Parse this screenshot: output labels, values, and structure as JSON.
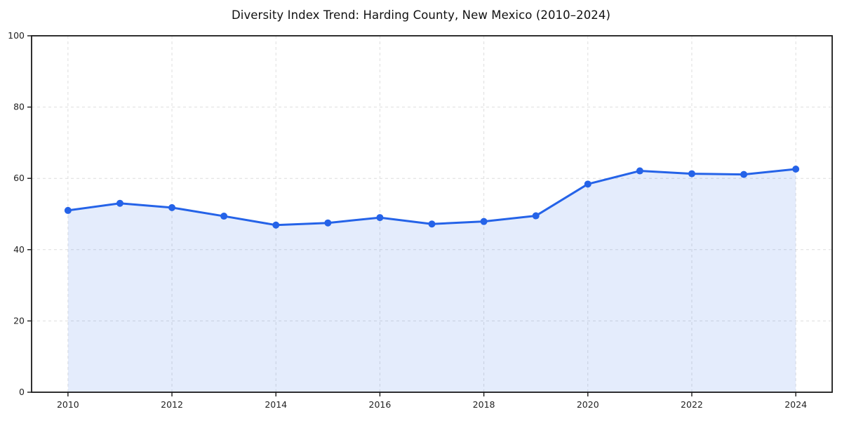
{
  "figure": {
    "title": "Diversity Index Trend: Harding County, New Mexico (2010–2024)"
  },
  "chart_data": {
    "type": "line",
    "title": "Diversity Index Trend: Harding County, New Mexico (2010–2024)",
    "x": [
      2010,
      2011,
      2012,
      2013,
      2014,
      2015,
      2016,
      2017,
      2018,
      2019,
      2020,
      2021,
      2022,
      2023,
      2024
    ],
    "series": [
      {
        "name": "Diversity Index",
        "values": [
          51.0,
          53.0,
          51.8,
          49.4,
          46.9,
          47.5,
          49.0,
          47.2,
          47.9,
          49.5,
          58.4,
          62.1,
          61.3,
          61.1,
          62.6
        ]
      }
    ],
    "xlabel": "",
    "ylabel": "",
    "ylim": [
      0,
      100
    ],
    "yticks": [
      0,
      20,
      40,
      60,
      80,
      100
    ],
    "ytick_labels": [
      "0",
      "20",
      "40",
      "60",
      "80",
      "100"
    ],
    "xticks": [
      2010,
      2012,
      2014,
      2016,
      2018,
      2020,
      2022,
      2024
    ],
    "xtick_labels": [
      "2010",
      "2012",
      "2014",
      "2016",
      "2018",
      "2020",
      "2022",
      "2024"
    ],
    "grid": "dashed",
    "legend": "none",
    "area_fill": true,
    "markers": "circle",
    "colors": {
      "line": "#2563e8",
      "marker": "#2563e8",
      "fill": "rgba(37, 99, 232, 0.12)",
      "grid": "#dedede",
      "spine": "#1a1a1a",
      "tick_label": "#222222",
      "title": "#111111",
      "background": "#ffffff"
    }
  }
}
